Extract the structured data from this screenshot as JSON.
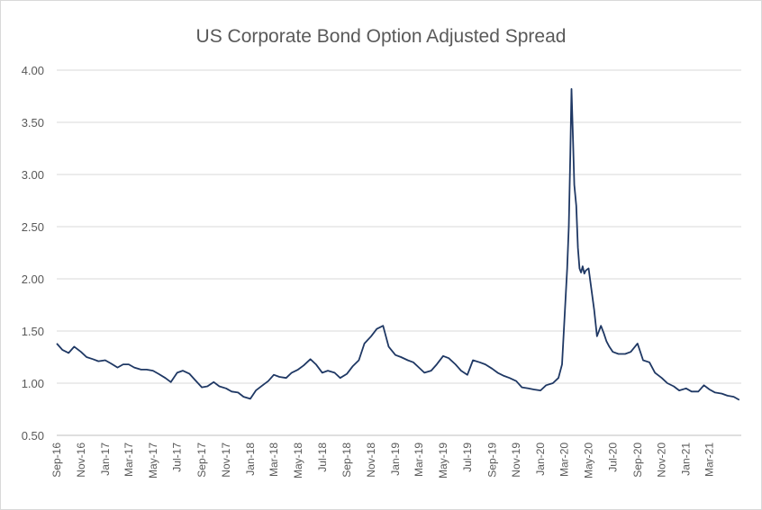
{
  "chart_data": {
    "type": "line",
    "title": "US Corporate Bond Option Adjusted Spread",
    "xlabel": "",
    "ylabel": "",
    "ylim": [
      0.5,
      4.0
    ],
    "yticks": [
      "0.50",
      "1.00",
      "1.50",
      "2.00",
      "2.50",
      "3.00",
      "3.50",
      "4.00"
    ],
    "xticks": [
      "Sep-16",
      "Nov-16",
      "Jan-17",
      "Mar-17",
      "May-17",
      "Jul-17",
      "Sep-17",
      "Nov-17",
      "Jan-18",
      "Mar-18",
      "May-18",
      "Jul-18",
      "Sep-18",
      "Nov-18",
      "Jan-19",
      "Mar-19",
      "May-19",
      "Jul-19",
      "Sep-19",
      "Nov-19",
      "Jan-20",
      "Mar-20",
      "May-20",
      "Jul-20",
      "Sep-20",
      "Nov-20",
      "Jan-21",
      "Mar-21"
    ],
    "grid": true,
    "legend": "none",
    "line_color": "#1f3864",
    "series": [
      {
        "x": [
          "2016-09-01",
          "2016-09-15",
          "2016-10-01",
          "2016-10-15",
          "2016-11-01",
          "2016-11-15",
          "2016-12-01",
          "2016-12-15",
          "2017-01-01",
          "2017-01-15",
          "2017-02-01",
          "2017-02-15",
          "2017-03-01",
          "2017-03-15",
          "2017-04-01",
          "2017-04-15",
          "2017-05-01",
          "2017-05-15",
          "2017-06-01",
          "2017-06-15",
          "2017-07-01",
          "2017-07-15",
          "2017-08-01",
          "2017-08-15",
          "2017-09-01",
          "2017-09-15",
          "2017-10-01",
          "2017-10-15",
          "2017-11-01",
          "2017-11-15",
          "2017-12-01",
          "2017-12-15",
          "2018-01-01",
          "2018-01-15",
          "2018-02-01",
          "2018-02-15",
          "2018-03-01",
          "2018-03-15",
          "2018-04-01",
          "2018-04-15",
          "2018-05-01",
          "2018-05-15",
          "2018-06-01",
          "2018-06-15",
          "2018-07-01",
          "2018-07-15",
          "2018-08-01",
          "2018-08-15",
          "2018-09-01",
          "2018-09-15",
          "2018-10-01",
          "2018-10-15",
          "2018-11-01",
          "2018-11-15",
          "2018-12-01",
          "2018-12-15",
          "2019-01-01",
          "2019-01-15",
          "2019-02-01",
          "2019-02-15",
          "2019-03-01",
          "2019-03-15",
          "2019-04-01",
          "2019-04-15",
          "2019-05-01",
          "2019-05-15",
          "2019-06-01",
          "2019-06-15",
          "2019-07-01",
          "2019-07-15",
          "2019-08-01",
          "2019-08-15",
          "2019-09-01",
          "2019-09-15",
          "2019-10-01",
          "2019-10-15",
          "2019-11-01",
          "2019-11-15",
          "2019-12-01",
          "2019-12-15",
          "2020-01-01",
          "2020-01-15",
          "2020-02-01",
          "2020-02-15",
          "2020-02-24",
          "2020-03-01",
          "2020-03-08",
          "2020-03-12",
          "2020-03-16",
          "2020-03-19",
          "2020-03-23",
          "2020-03-26",
          "2020-03-31",
          "2020-04-04",
          "2020-04-08",
          "2020-04-12",
          "2020-04-16",
          "2020-04-20",
          "2020-04-24",
          "2020-05-01",
          "2020-05-08",
          "2020-05-15",
          "2020-05-22",
          "2020-06-01",
          "2020-06-08",
          "2020-06-15",
          "2020-06-22",
          "2020-07-01",
          "2020-07-15",
          "2020-08-01",
          "2020-08-15",
          "2020-09-01",
          "2020-09-15",
          "2020-10-01",
          "2020-10-15",
          "2020-11-01",
          "2020-11-15",
          "2020-12-01",
          "2020-12-15",
          "2021-01-01",
          "2021-01-15",
          "2021-02-01",
          "2021-02-15",
          "2021-03-01",
          "2021-03-15",
          "2021-04-01",
          "2021-04-15",
          "2021-05-01",
          "2021-05-15"
        ],
        "values": [
          1.38,
          1.32,
          1.29,
          1.35,
          1.3,
          1.25,
          1.23,
          1.21,
          1.22,
          1.19,
          1.15,
          1.18,
          1.18,
          1.15,
          1.13,
          1.13,
          1.12,
          1.09,
          1.05,
          1.01,
          1.1,
          1.12,
          1.09,
          1.03,
          0.96,
          0.97,
          1.01,
          0.97,
          0.95,
          0.92,
          0.91,
          0.87,
          0.85,
          0.93,
          0.98,
          1.02,
          1.08,
          1.06,
          1.05,
          1.1,
          1.13,
          1.17,
          1.23,
          1.18,
          1.1,
          1.12,
          1.1,
          1.05,
          1.09,
          1.16,
          1.22,
          1.38,
          1.45,
          1.52,
          1.55,
          1.35,
          1.27,
          1.25,
          1.22,
          1.2,
          1.15,
          1.1,
          1.12,
          1.18,
          1.26,
          1.24,
          1.18,
          1.12,
          1.08,
          1.22,
          1.2,
          1.18,
          1.14,
          1.1,
          1.07,
          1.05,
          1.02,
          0.96,
          0.95,
          0.94,
          0.93,
          0.98,
          1.0,
          1.05,
          1.18,
          1.6,
          2.1,
          2.5,
          3.2,
          3.82,
          3.3,
          2.9,
          2.7,
          2.3,
          2.1,
          2.06,
          2.12,
          2.05,
          2.08,
          2.1,
          1.9,
          1.7,
          1.45,
          1.55,
          1.48,
          1.4,
          1.35,
          1.3,
          1.28,
          1.28,
          1.3,
          1.38,
          1.22,
          1.2,
          1.1,
          1.05,
          1.0,
          0.97,
          0.93,
          0.95,
          0.92,
          0.92,
          0.98,
          0.94,
          0.91,
          0.9,
          0.88,
          0.87,
          0.84
        ]
      }
    ]
  }
}
